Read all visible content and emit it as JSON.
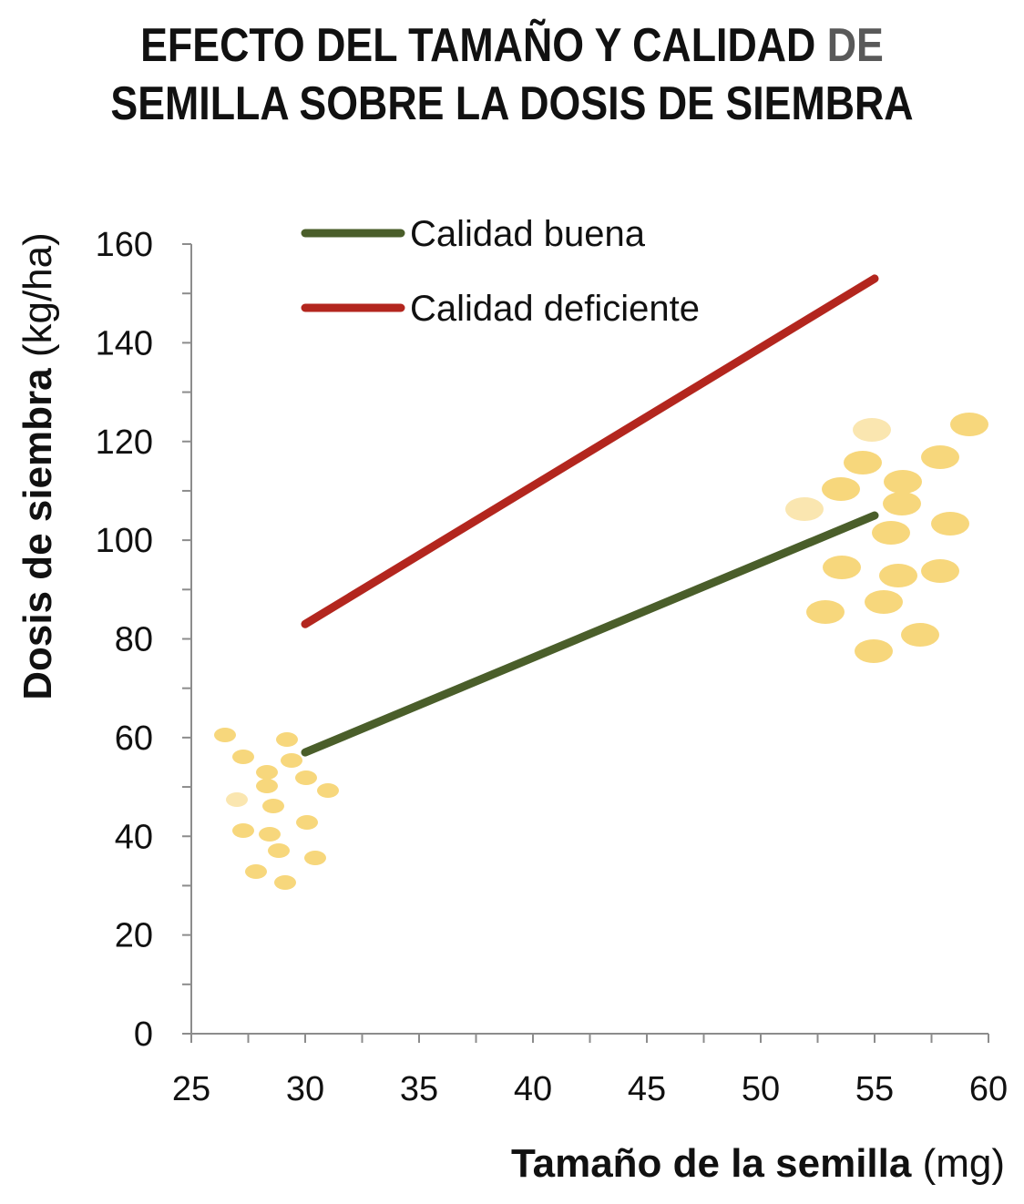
{
  "title": {
    "line1_main": "EFECTO DEL TAMAÑO Y CALIDAD ",
    "line1_accent": "DE",
    "line2": "SEMILLA SOBRE LA DOSIS DE SIEMBRA"
  },
  "chart_data": {
    "type": "line",
    "title": "EFECTO DEL TAMAÑO Y CALIDAD DE SEMILLA SOBRE LA DOSIS DE SIEMBRA",
    "xlabel_bold": "Tamaño de la semilla",
    "xlabel_unit": " (mg)",
    "ylabel_bold": "Dosis de siembra",
    "ylabel_unit": " (kg/ha)",
    "xlim": [
      25,
      60
    ],
    "ylim": [
      0,
      160
    ],
    "x_ticks": [
      25,
      30,
      35,
      40,
      45,
      50,
      55,
      60
    ],
    "y_ticks": [
      0,
      20,
      40,
      60,
      80,
      100,
      120,
      140,
      160
    ],
    "grid": false,
    "legend_position": "top-left",
    "series": [
      {
        "name": "Calidad buena",
        "color": "#4a5e2a",
        "x": [
          30,
          55
        ],
        "y": [
          57,
          105
        ]
      },
      {
        "name": "Calidad deficiente",
        "color": "#b3261e",
        "x": [
          30,
          55
        ],
        "y": [
          83,
          153
        ]
      }
    ],
    "decorations": {
      "seed_color": "#f7d77c",
      "seed_light_color": "#fae6b0"
    }
  }
}
